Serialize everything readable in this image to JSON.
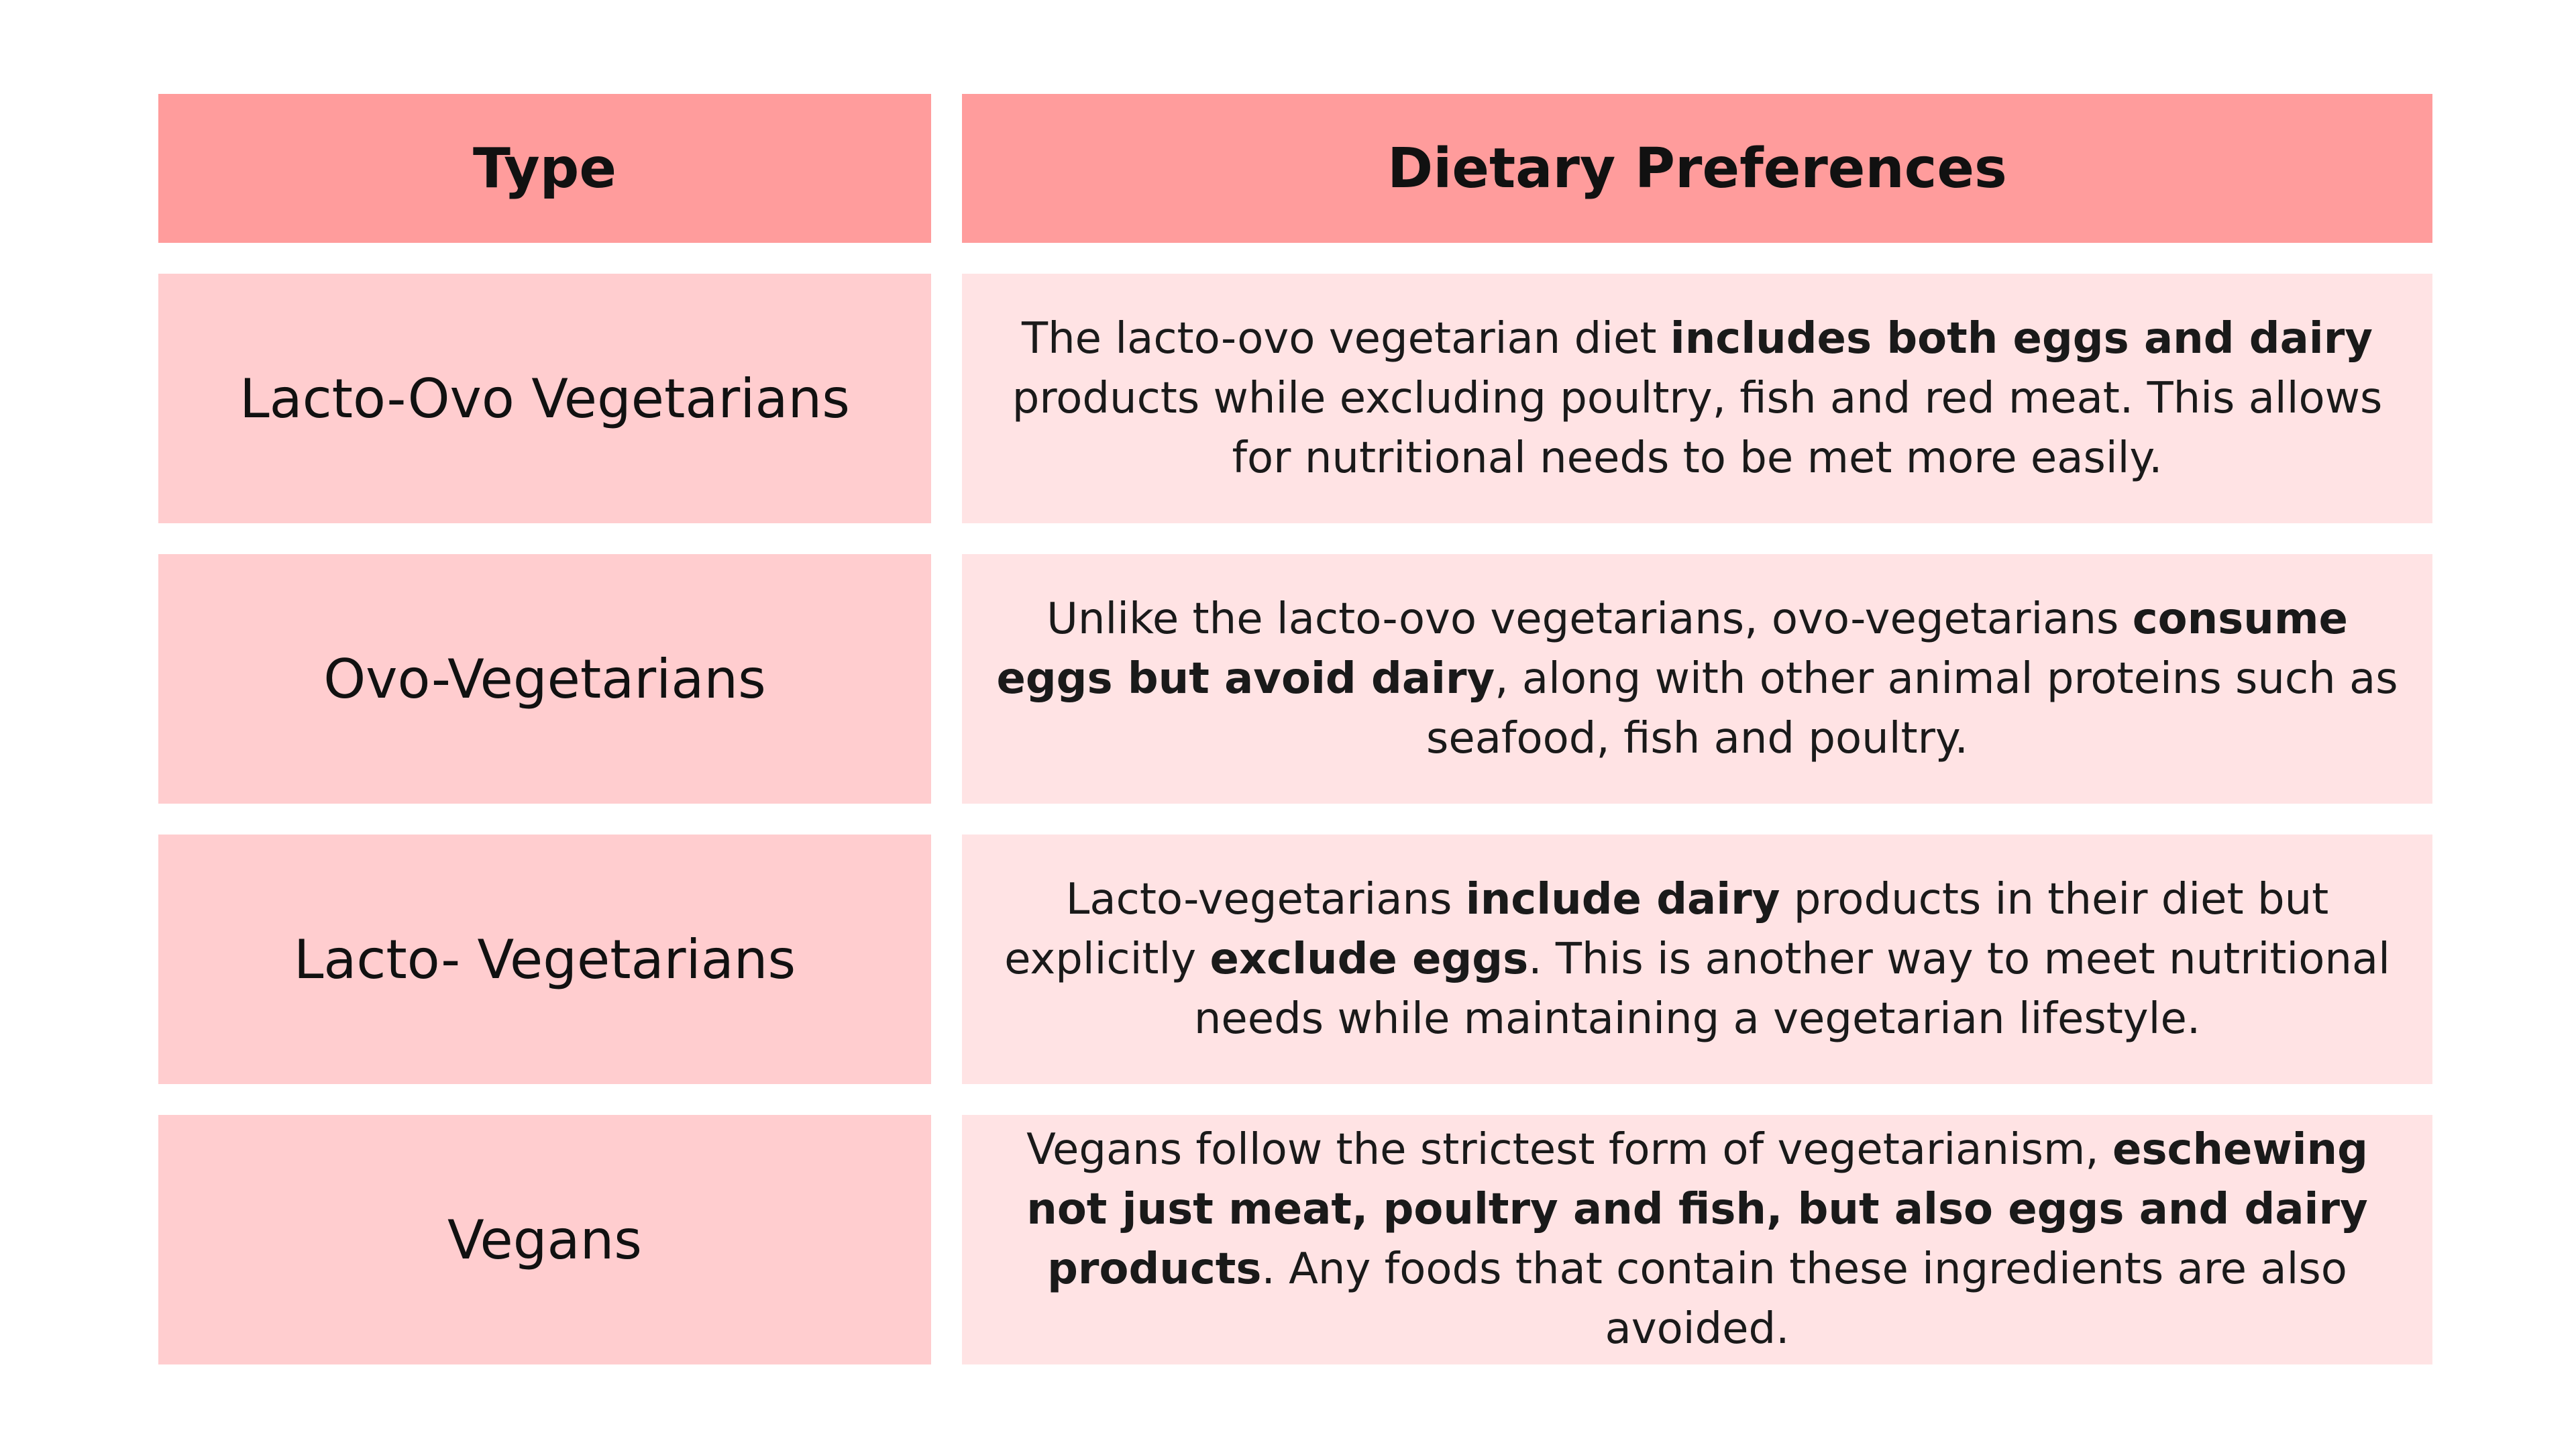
{
  "colors": {
    "header_bg": "#FF9C9C",
    "type_cell_bg": "#FFCDCF",
    "pref_cell_bg": "#FFE3E4",
    "text": "#111111"
  },
  "table": {
    "headers": {
      "type": "Type",
      "preferences": "Dietary Preferences"
    },
    "rows": [
      {
        "type": "Lacto-Ovo Vegetarians",
        "pref_pre": "The lacto-ovo vegetarian diet ",
        "pref_bold": "includes both eggs and dairy",
        "pref_mid": " products while excluding poultry, fish and red meat. This allows for nutritional needs to be met more easily.",
        "pref_bold2": "",
        "pref_post": ""
      },
      {
        "type": "Ovo-Vegetarians",
        "pref_pre": "Unlike the lacto-ovo vegetarians, ovo-vegetarians ",
        "pref_bold": "consume eggs but avoid dairy",
        "pref_mid": ", along with other animal proteins such as seafood, fish and poultry.",
        "pref_bold2": "",
        "pref_post": ""
      },
      {
        "type": "Lacto- Vegetarians",
        "pref_pre": "Lacto-vegetarians ",
        "pref_bold": "include dairy",
        "pref_mid": " products in their diet but explicitly ",
        "pref_bold2": "exclude eggs",
        "pref_post": ". This is another way to meet nutritional needs while maintaining a vegetarian lifestyle."
      },
      {
        "type": "Vegans",
        "pref_pre": "Vegans follow the strictest form of vegetarianism, ",
        "pref_bold": "eschewing not just meat, poultry and fish, but also eggs and dairy products",
        "pref_mid": ". Any foods that contain these ingredients are also avoided.",
        "pref_bold2": "",
        "pref_post": ""
      }
    ]
  }
}
